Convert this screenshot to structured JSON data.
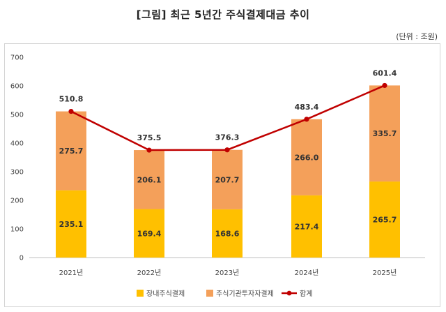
{
  "title": "[그림] 최근 5년간 주식결제대금 추이",
  "unit": "(단위 : 조원)",
  "colors": {
    "series1": "#FFC000",
    "series2": "#F4A05A",
    "line": "#C00000"
  },
  "chart_data": {
    "type": "bar",
    "stacked": true,
    "categories": [
      "2021년",
      "2022년",
      "2023년",
      "2024년",
      "2025년"
    ],
    "series": [
      {
        "name": "장내주식결제",
        "values": [
          235.1,
          169.4,
          168.6,
          217.4,
          265.7
        ]
      },
      {
        "name": "주식기관투자자결제",
        "values": [
          275.7,
          206.1,
          207.7,
          266.0,
          335.7
        ]
      }
    ],
    "line_series": {
      "name": "합계",
      "values": [
        510.8,
        375.5,
        376.3,
        483.4,
        601.4
      ]
    },
    "ylim": [
      0,
      700
    ],
    "yticks": [
      0,
      100,
      200,
      300,
      400,
      500,
      600,
      700
    ],
    "legend": "bottom",
    "grid": false
  }
}
